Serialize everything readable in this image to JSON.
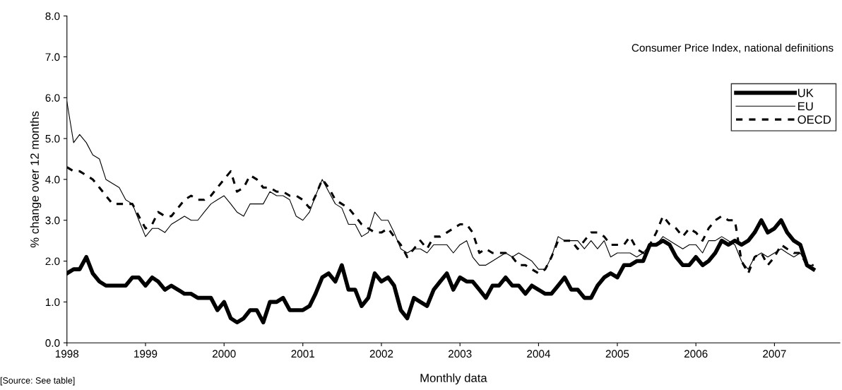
{
  "chart_data": {
    "type": "line",
    "ylabel": "% change over 12 months",
    "xlabel": "Monthly data",
    "annotations": [
      "Consumer Price Index, national definitions",
      "[Source: See table]"
    ],
    "x": [
      "1998-01",
      "1998-02",
      "1998-03",
      "1998-04",
      "1998-05",
      "1998-06",
      "1998-07",
      "1998-08",
      "1998-09",
      "1998-10",
      "1998-11",
      "1998-12",
      "1999-01",
      "1999-02",
      "1999-03",
      "1999-04",
      "1999-05",
      "1999-06",
      "1999-07",
      "1999-08",
      "1999-09",
      "1999-10",
      "1999-11",
      "1999-12",
      "2000-01",
      "2000-02",
      "2000-03",
      "2000-04",
      "2000-05",
      "2000-06",
      "2000-07",
      "2000-08",
      "2000-09",
      "2000-10",
      "2000-11",
      "2000-12",
      "2001-01",
      "2001-02",
      "2001-03",
      "2001-04",
      "2001-05",
      "2001-06",
      "2001-07",
      "2001-08",
      "2001-09",
      "2001-10",
      "2001-11",
      "2001-12",
      "2002-01",
      "2002-02",
      "2002-03",
      "2002-04",
      "2002-05",
      "2002-06",
      "2002-07",
      "2002-08",
      "2002-09",
      "2002-10",
      "2002-11",
      "2002-12",
      "2003-01",
      "2003-02",
      "2003-03",
      "2003-04",
      "2003-05",
      "2003-06",
      "2003-07",
      "2003-08",
      "2003-09",
      "2003-10",
      "2003-11",
      "2003-12",
      "2004-01",
      "2004-02",
      "2004-03",
      "2004-04",
      "2004-05",
      "2004-06",
      "2004-07",
      "2004-08",
      "2004-09",
      "2004-10",
      "2004-11",
      "2004-12",
      "2005-01",
      "2005-02",
      "2005-03",
      "2005-04",
      "2005-05",
      "2005-06",
      "2005-07",
      "2005-08",
      "2005-09",
      "2005-10",
      "2005-11",
      "2005-12",
      "2006-01",
      "2006-02",
      "2006-03",
      "2006-04",
      "2006-05",
      "2006-06",
      "2006-07",
      "2006-08",
      "2006-09",
      "2006-10",
      "2006-11",
      "2006-12",
      "2007-01",
      "2007-02",
      "2007-03",
      "2007-04",
      "2007-05",
      "2007-06",
      "2007-07"
    ],
    "series": [
      {
        "name": "UK",
        "color": "#000000",
        "line_style": "solid",
        "values": [
          1.7,
          1.8,
          1.8,
          2.1,
          1.7,
          1.5,
          1.4,
          1.4,
          1.4,
          1.4,
          1.6,
          1.6,
          1.4,
          1.6,
          1.5,
          1.3,
          1.4,
          1.3,
          1.2,
          1.2,
          1.1,
          1.1,
          1.1,
          0.8,
          1.0,
          0.6,
          0.5,
          0.6,
          0.8,
          0.8,
          0.5,
          1.0,
          1.0,
          1.1,
          0.8,
          0.8,
          0.8,
          0.9,
          1.2,
          1.6,
          1.7,
          1.5,
          1.9,
          1.3,
          1.3,
          0.9,
          1.1,
          1.7,
          1.5,
          1.6,
          1.4,
          0.8,
          0.6,
          1.1,
          1.0,
          0.9,
          1.3,
          1.5,
          1.7,
          1.3,
          1.6,
          1.5,
          1.5,
          1.3,
          1.1,
          1.4,
          1.4,
          1.6,
          1.4,
          1.4,
          1.2,
          1.4,
          1.3,
          1.2,
          1.2,
          1.4,
          1.6,
          1.3,
          1.3,
          1.1,
          1.1,
          1.4,
          1.6,
          1.7,
          1.6,
          1.9,
          1.9,
          2.0,
          2.0,
          2.4,
          2.4,
          2.5,
          2.4,
          2.1,
          1.9,
          1.9,
          2.1,
          1.9,
          2.0,
          2.2,
          2.5,
          2.4,
          2.5,
          2.4,
          2.5,
          2.7,
          3.0,
          2.7,
          2.8,
          3.0,
          2.7,
          2.5,
          2.4,
          1.9,
          1.8
        ]
      },
      {
        "name": "EU",
        "color": "#000000",
        "line_style": "solid",
        "values": [
          5.9,
          4.9,
          5.1,
          4.9,
          4.6,
          4.5,
          4.0,
          3.9,
          3.8,
          3.5,
          3.4,
          3.0,
          2.6,
          2.8,
          2.8,
          2.7,
          2.9,
          3.0,
          3.1,
          3.0,
          3.0,
          3.2,
          3.4,
          3.5,
          3.6,
          3.4,
          3.2,
          3.1,
          3.4,
          3.4,
          3.4,
          3.7,
          3.6,
          3.6,
          3.5,
          3.1,
          3.0,
          3.2,
          3.6,
          4.0,
          3.7,
          3.4,
          3.3,
          2.9,
          2.9,
          2.6,
          2.7,
          3.2,
          3.0,
          3.0,
          2.7,
          2.3,
          2.2,
          2.3,
          2.3,
          2.2,
          2.4,
          2.4,
          2.4,
          2.2,
          2.4,
          2.5,
          2.1,
          1.9,
          1.9,
          2.0,
          2.1,
          2.2,
          2.1,
          2.2,
          2.1,
          2.0,
          1.8,
          1.8,
          2.1,
          2.6,
          2.5,
          2.5,
          2.5,
          2.3,
          2.5,
          2.3,
          2.5,
          2.1,
          2.2,
          2.2,
          2.2,
          2.1,
          2.2,
          2.4,
          2.4,
          2.6,
          2.5,
          2.4,
          2.3,
          2.4,
          2.4,
          2.2,
          2.5,
          2.5,
          2.6,
          2.5,
          2.4,
          2.0,
          1.8,
          2.1,
          2.2,
          2.1,
          2.2,
          2.3,
          2.2,
          2.1,
          2.2,
          1.9,
          1.9
        ]
      },
      {
        "name": "OECD",
        "color": "#000000",
        "line_style": "dashed",
        "values": [
          4.3,
          4.2,
          4.2,
          4.1,
          4.0,
          3.8,
          3.6,
          3.4,
          3.4,
          3.4,
          3.4,
          3.1,
          2.8,
          2.9,
          3.2,
          3.1,
          3.1,
          3.3,
          3.5,
          3.6,
          3.5,
          3.5,
          3.6,
          3.8,
          4.0,
          4.2,
          3.7,
          3.8,
          4.1,
          4.0,
          3.8,
          3.8,
          3.7,
          3.7,
          3.6,
          3.6,
          3.5,
          3.3,
          3.6,
          4.0,
          3.8,
          3.5,
          3.4,
          3.3,
          3.1,
          2.9,
          2.8,
          2.7,
          2.7,
          2.8,
          2.6,
          2.4,
          2.1,
          2.3,
          2.5,
          2.3,
          2.6,
          2.6,
          2.7,
          2.8,
          2.9,
          2.9,
          2.7,
          2.2,
          2.3,
          2.2,
          2.2,
          2.2,
          2.1,
          1.9,
          1.9,
          1.8,
          1.7,
          1.8,
          2.1,
          2.5,
          2.5,
          2.5,
          2.3,
          2.5,
          2.7,
          2.7,
          2.6,
          2.4,
          2.4,
          2.4,
          2.6,
          2.3,
          2.2,
          2.4,
          2.7,
          3.1,
          2.9,
          2.8,
          2.6,
          2.8,
          2.7,
          2.5,
          2.8,
          3.0,
          3.1,
          3.0,
          3.0,
          2.0,
          1.7,
          2.1,
          2.2,
          1.9,
          2.1,
          2.4,
          2.3,
          2.2,
          2.2,
          1.9,
          1.9
        ]
      }
    ],
    "xlim": [
      "1998-01",
      "2007-11"
    ],
    "xticks": [
      "1998",
      "1999",
      "2000",
      "2001",
      "2002",
      "2003",
      "2004",
      "2005",
      "2006",
      "2007"
    ],
    "ylim": [
      0,
      8
    ],
    "yticks": [
      {
        "value": 0,
        "label": "0.0"
      },
      {
        "value": 1,
        "label": "1.0"
      },
      {
        "value": 2,
        "label": "2.0"
      },
      {
        "value": 3,
        "label": "3.0"
      },
      {
        "value": 4,
        "label": "4.0"
      },
      {
        "value": 5,
        "label": "5.0"
      },
      {
        "value": 6,
        "label": "6.0"
      },
      {
        "value": 7,
        "label": "7.0"
      },
      {
        "value": 8,
        "label": "8.0"
      }
    ],
    "grid": false,
    "legend": "top right"
  }
}
